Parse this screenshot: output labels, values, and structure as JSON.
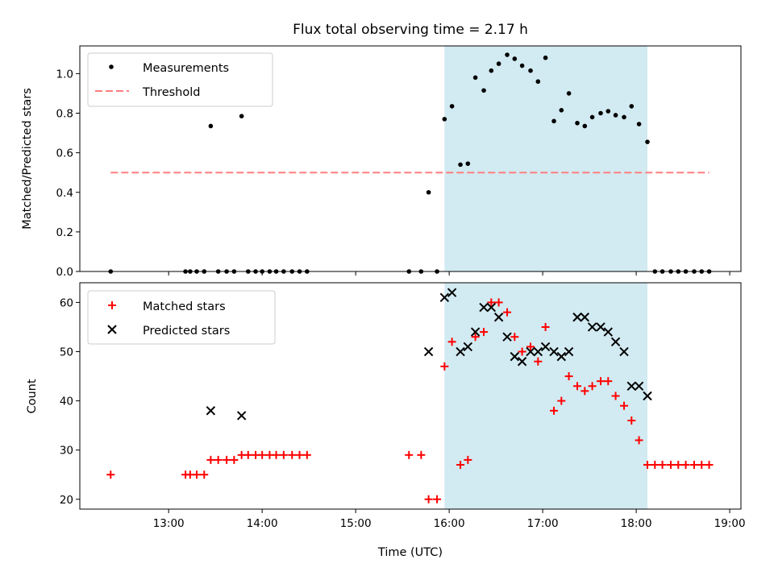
{
  "chart_data": {
    "type": "scatter",
    "title": "Flux total observing time = 2.17 h",
    "xlabel": "Time (UTC)",
    "x_tick_labels": [
      "13:00",
      "14:00",
      "15:00",
      "16:00",
      "17:00",
      "18:00",
      "19:00"
    ],
    "x_ticks_hours": [
      13,
      14,
      15,
      16,
      17,
      18,
      19
    ],
    "xlim_hours": [
      12.05,
      19.12
    ],
    "highlight_span_hours": [
      15.95,
      18.12
    ],
    "highlight_color": "#add8e6",
    "panels": [
      {
        "ylabel": "Matched/Predicted stars",
        "ylim": [
          0,
          1.14
        ],
        "y_ticks": [
          0.0,
          0.2,
          0.4,
          0.6,
          0.8,
          1.0
        ],
        "y_tick_labels": [
          "0.0",
          "0.2",
          "0.4",
          "0.6",
          "0.8",
          "1.0"
        ],
        "legend": {
          "position": "upper-left",
          "entries": [
            "Measurements",
            "Threshold"
          ]
        },
        "threshold": {
          "name": "Threshold",
          "value": 0.5,
          "x_range_hours": [
            12.38,
            18.78
          ],
          "color": "#ff7f7f"
        },
        "series": [
          {
            "name": "Measurements",
            "marker": "dot",
            "color": "#000000",
            "x_hours": [
              12.38,
              13.18,
              13.23,
              13.3,
              13.38,
              13.45,
              13.53,
              13.62,
              13.7,
              13.78,
              13.85,
              13.93,
              14.0,
              14.08,
              14.15,
              14.23,
              14.32,
              14.4,
              14.48,
              15.57,
              15.7,
              15.78,
              15.87,
              15.95,
              16.03,
              16.12,
              16.2,
              16.28,
              16.37,
              16.45,
              16.53,
              16.62,
              16.7,
              16.78,
              16.87,
              16.95,
              17.03,
              17.12,
              17.2,
              17.28,
              17.37,
              17.45,
              17.53,
              17.62,
              17.7,
              17.78,
              17.87,
              17.95,
              18.03,
              18.12,
              18.2,
              18.28,
              18.37,
              18.45,
              18.53,
              18.62,
              18.7,
              18.78
            ],
            "y": [
              0.0,
              0.0,
              0.0,
              0.0,
              0.0,
              0.735,
              0.0,
              0.0,
              0.0,
              0.785,
              0.0,
              0.0,
              0.0,
              0.0,
              0.0,
              0.0,
              0.0,
              0.0,
              0.0,
              0.0,
              0.0,
              0.4,
              0.0,
              0.77,
              0.835,
              0.54,
              0.545,
              0.98,
              0.915,
              1.015,
              1.05,
              1.095,
              1.075,
              1.04,
              1.015,
              0.96,
              1.08,
              0.76,
              0.815,
              0.9,
              0.75,
              0.735,
              0.78,
              0.8,
              0.81,
              0.79,
              0.78,
              0.835,
              0.745,
              0.655,
              0.0,
              0.0,
              0.0,
              0.0,
              0.0,
              0.0,
              0.0,
              0.0
            ]
          }
        ]
      },
      {
        "ylabel": "Count",
        "ylim": [
          18,
          64
        ],
        "y_ticks": [
          20,
          30,
          40,
          50,
          60
        ],
        "y_tick_labels": [
          "20",
          "30",
          "40",
          "50",
          "60"
        ],
        "legend": {
          "position": "upper-left",
          "entries": [
            "Matched stars",
            "Predicted stars"
          ]
        },
        "series": [
          {
            "name": "Matched stars",
            "marker": "plus",
            "color": "#ff0000",
            "x_hours": [
              12.38,
              13.18,
              13.23,
              13.3,
              13.38,
              13.45,
              13.53,
              13.62,
              13.7,
              13.78,
              13.85,
              13.93,
              14.0,
              14.08,
              14.15,
              14.23,
              14.32,
              14.4,
              14.48,
              15.57,
              15.7,
              15.78,
              15.87,
              15.95,
              16.03,
              16.12,
              16.2,
              16.28,
              16.37,
              16.45,
              16.53,
              16.62,
              16.7,
              16.78,
              16.87,
              16.95,
              17.03,
              17.12,
              17.2,
              17.28,
              17.37,
              17.45,
              17.53,
              17.62,
              17.7,
              17.78,
              17.87,
              17.95,
              18.03,
              18.12,
              18.2,
              18.28,
              18.37,
              18.45,
              18.53,
              18.62,
              18.7,
              18.78
            ],
            "y": [
              25,
              25,
              25,
              25,
              25,
              28,
              28,
              28,
              28,
              29,
              29,
              29,
              29,
              29,
              29,
              29,
              29,
              29,
              29,
              29,
              29,
              20,
              20,
              47,
              52,
              27,
              28,
              53,
              54,
              60,
              60,
              58,
              53,
              50,
              51,
              48,
              55,
              38,
              40,
              45,
              43,
              42,
              43,
              44,
              44,
              41,
              39,
              36,
              32,
              27,
              27,
              27,
              27,
              27,
              27,
              27,
              27,
              27
            ]
          },
          {
            "name": "Predicted stars",
            "marker": "x",
            "color": "#000000",
            "x_hours": [
              13.45,
              13.78,
              15.78,
              15.95,
              16.03,
              16.12,
              16.2,
              16.28,
              16.37,
              16.45,
              16.53,
              16.62,
              16.7,
              16.78,
              16.87,
              16.95,
              17.03,
              17.12,
              17.2,
              17.28,
              17.37,
              17.45,
              17.53,
              17.62,
              17.7,
              17.78,
              17.87,
              17.95,
              18.03,
              18.12
            ],
            "y": [
              38,
              37,
              50,
              61,
              62,
              50,
              51,
              54,
              59,
              59,
              57,
              53,
              49,
              48,
              50,
              50,
              51,
              50,
              49,
              50,
              57,
              57,
              55,
              55,
              54,
              52,
              50,
              43,
              43,
              41
            ]
          }
        ]
      }
    ]
  }
}
